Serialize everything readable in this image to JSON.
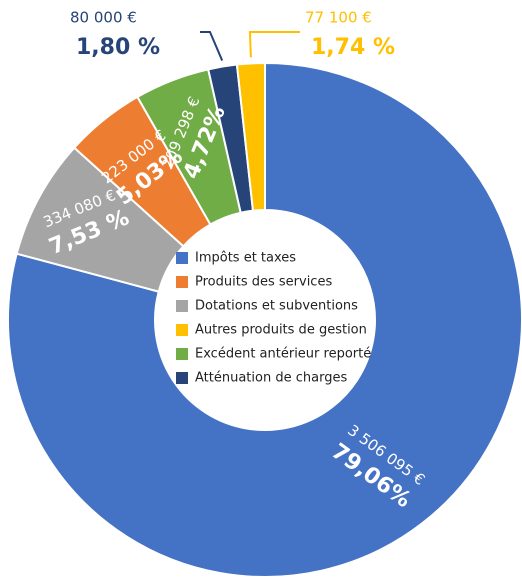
{
  "chart_data": {
    "type": "pie",
    "donut": true,
    "categories": [
      "Impôts et taxes",
      "Dotations et subventions",
      "Produits des services",
      "Excédent antérieur reporté",
      "Atténuation de charges",
      "Autres produits de gestion"
    ],
    "values": [
      79.06,
      7.53,
      5.03,
      4.72,
      1.8,
      1.74
    ],
    "value_labels": [
      "79,06%",
      "7,53 %",
      "5,03%",
      "4,72%",
      "1,80 %",
      "1,74 %"
    ],
    "amount_labels": [
      "3 506 095 €",
      "334 080 €",
      "223 000 €",
      "209 298 €",
      "80 000 €",
      "77 100 €"
    ],
    "colors": [
      "#4472c4",
      "#a5a5a5",
      "#ed7d31",
      "#70ad47",
      "#264478",
      "#ffc000"
    ]
  }
}
